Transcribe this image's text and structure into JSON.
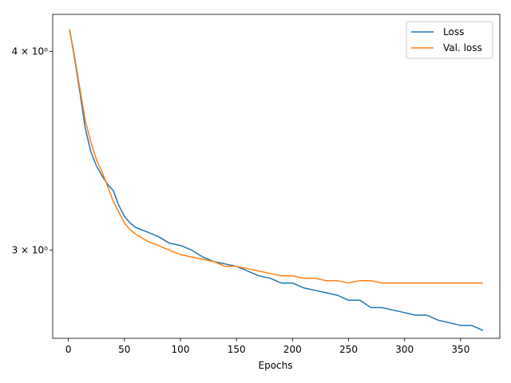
{
  "chart_data": {
    "type": "line",
    "title": "",
    "xlabel": "Epochs",
    "ylabel": "",
    "xlim": [
      -14,
      385
    ],
    "ylim": [
      2.64,
      4.22
    ],
    "yscale": "log",
    "grid": false,
    "legend_position": "top-right",
    "x_ticks": [
      0,
      50,
      100,
      150,
      200,
      250,
      300,
      350
    ],
    "y_ticks": [
      {
        "value": 3.0,
        "label": "3 × 10⁰"
      },
      {
        "value": 4.0,
        "label": "4 × 10⁰"
      }
    ],
    "series": [
      {
        "name": "Loss",
        "color": "#1f77b4",
        "x": [
          1,
          5,
          10,
          15,
          20,
          25,
          30,
          35,
          40,
          45,
          50,
          55,
          60,
          70,
          80,
          90,
          100,
          110,
          120,
          130,
          140,
          150,
          160,
          170,
          180,
          190,
          200,
          210,
          220,
          230,
          240,
          250,
          260,
          270,
          280,
          290,
          300,
          310,
          320,
          330,
          340,
          350,
          360,
          370
        ],
        "values": [
          4.13,
          3.98,
          3.78,
          3.58,
          3.46,
          3.39,
          3.34,
          3.3,
          3.27,
          3.2,
          3.15,
          3.12,
          3.1,
          3.08,
          3.06,
          3.03,
          3.02,
          3.0,
          2.97,
          2.95,
          2.94,
          2.93,
          2.91,
          2.89,
          2.88,
          2.86,
          2.86,
          2.84,
          2.83,
          2.82,
          2.81,
          2.79,
          2.79,
          2.76,
          2.76,
          2.75,
          2.74,
          2.73,
          2.73,
          2.71,
          2.7,
          2.69,
          2.69,
          2.67
        ]
      },
      {
        "name": "Val. loss",
        "color": "#ff7f0e",
        "x": [
          1,
          5,
          10,
          15,
          20,
          25,
          30,
          35,
          40,
          45,
          50,
          55,
          60,
          70,
          80,
          90,
          100,
          110,
          120,
          130,
          140,
          150,
          160,
          170,
          180,
          190,
          200,
          210,
          220,
          230,
          240,
          250,
          260,
          270,
          280,
          290,
          300,
          310,
          320,
          330,
          340,
          350,
          360,
          370
        ],
        "values": [
          4.13,
          3.99,
          3.8,
          3.62,
          3.51,
          3.42,
          3.36,
          3.29,
          3.22,
          3.17,
          3.12,
          3.09,
          3.07,
          3.04,
          3.02,
          3.0,
          2.98,
          2.97,
          2.96,
          2.95,
          2.93,
          2.93,
          2.92,
          2.91,
          2.9,
          2.89,
          2.89,
          2.88,
          2.88,
          2.87,
          2.87,
          2.86,
          2.87,
          2.87,
          2.86,
          2.86,
          2.86,
          2.86,
          2.86,
          2.86,
          2.86,
          2.86,
          2.86,
          2.86
        ]
      }
    ]
  }
}
